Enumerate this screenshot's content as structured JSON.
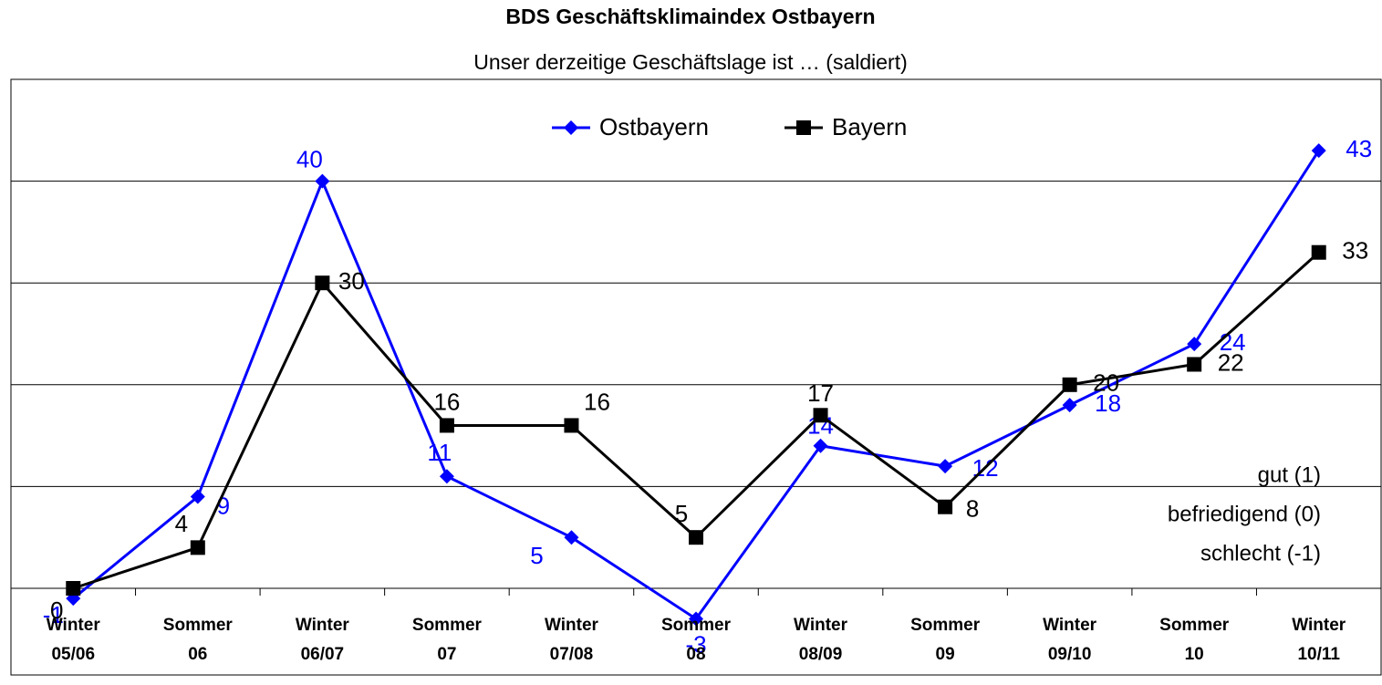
{
  "chart_data": {
    "type": "line",
    "title": "BDS Geschäftsklimaindex Ostbayern",
    "subtitle": "Unser derzeitige Geschäftslage ist … (saldiert)",
    "categories": [
      "Winter\n05/06",
      "Sommer\n06",
      "Winter\n06/07",
      "Sommer\n07",
      "Winter\n07/08",
      "Sommer\n08",
      "Winter\n08/09",
      "Sommer\n09",
      "Winter\n09/10",
      "Sommer\n10",
      "Winter\n10/11"
    ],
    "series": [
      {
        "name": "Ostbayern",
        "color": "#0000ff",
        "marker": "diamond",
        "values": [
          -1,
          9,
          40,
          11,
          5,
          -3,
          14,
          12,
          18,
          24,
          43
        ]
      },
      {
        "name": "Bayern",
        "color": "#000000",
        "marker": "square",
        "values": [
          0,
          4,
          30,
          16,
          16,
          5,
          17,
          8,
          20,
          22,
          33
        ]
      }
    ],
    "ylim": [
      0,
      50
    ],
    "yticks": [
      0,
      10,
      20,
      30,
      40,
      50
    ],
    "grid": true,
    "legend": "top",
    "annotations": [
      "gut (1)",
      "befriedigend (0)",
      "schlecht (-1)"
    ]
  }
}
